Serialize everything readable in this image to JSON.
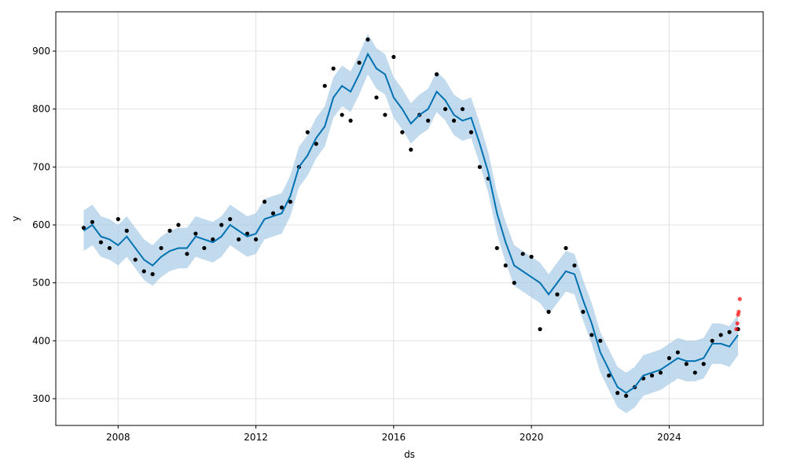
{
  "chart_data": {
    "type": "line",
    "xlabel": "ds",
    "ylabel": "y",
    "xlim": [
      2006.19,
      2026.73
    ],
    "ylim": [
      253.8,
      967.9
    ],
    "xticks": [
      2008,
      2012,
      2016,
      2020,
      2024
    ],
    "yticks": [
      300,
      400,
      500,
      600,
      700,
      800,
      900
    ],
    "grid": true,
    "x": [
      2007.0,
      2007.25,
      2007.5,
      2007.75,
      2008.0,
      2008.25,
      2008.5,
      2008.75,
      2009.0,
      2009.25,
      2009.5,
      2009.75,
      2010.0,
      2010.25,
      2010.5,
      2010.75,
      2011.0,
      2011.25,
      2011.5,
      2011.75,
      2012.0,
      2012.25,
      2012.5,
      2012.75,
      2013.0,
      2013.25,
      2013.5,
      2013.75,
      2014.0,
      2014.25,
      2014.5,
      2014.75,
      2015.0,
      2015.25,
      2015.5,
      2015.75,
      2016.0,
      2016.25,
      2016.5,
      2016.75,
      2017.0,
      2017.25,
      2017.5,
      2017.75,
      2018.0,
      2018.25,
      2018.5,
      2018.75,
      2019.0,
      2019.25,
      2019.5,
      2019.75,
      2020.0,
      2020.25,
      2020.5,
      2020.75,
      2021.0,
      2021.25,
      2021.5,
      2021.75,
      2022.0,
      2022.25,
      2022.5,
      2022.75,
      2023.0,
      2023.25,
      2023.5,
      2023.75,
      2024.0,
      2024.25,
      2024.5,
      2024.75,
      2025.0,
      2025.25,
      2025.5,
      2025.75,
      2026.0
    ],
    "forecast": {
      "color": "#0072b2",
      "values": [
        590,
        600,
        580,
        575,
        565,
        580,
        560,
        540,
        530,
        545,
        555,
        560,
        560,
        580,
        575,
        570,
        580,
        600,
        590,
        580,
        585,
        610,
        615,
        620,
        650,
        700,
        720,
        750,
        770,
        820,
        840,
        830,
        860,
        895,
        870,
        860,
        820,
        800,
        775,
        790,
        800,
        830,
        815,
        790,
        780,
        785,
        740,
        690,
        620,
        570,
        530,
        520,
        510,
        500,
        480,
        500,
        520,
        515,
        470,
        430,
        380,
        350,
        320,
        310,
        320,
        340,
        345,
        350,
        360,
        370,
        365,
        365,
        370,
        395,
        395,
        390,
        410
      ]
    },
    "band": {
      "color": "#a6cbe6",
      "lower": [
        555,
        565,
        545,
        540,
        530,
        545,
        525,
        505,
        495,
        510,
        520,
        525,
        525,
        545,
        540,
        535,
        545,
        565,
        555,
        545,
        550,
        575,
        580,
        585,
        615,
        665,
        685,
        715,
        735,
        785,
        805,
        795,
        825,
        860,
        835,
        825,
        785,
        765,
        740,
        755,
        765,
        795,
        780,
        755,
        745,
        750,
        705,
        655,
        585,
        535,
        495,
        485,
        475,
        465,
        445,
        465,
        485,
        480,
        435,
        395,
        345,
        315,
        285,
        275,
        285,
        305,
        310,
        315,
        325,
        335,
        330,
        330,
        335,
        360,
        360,
        355,
        375
      ],
      "upper": [
        625,
        635,
        615,
        610,
        600,
        615,
        595,
        575,
        565,
        580,
        590,
        595,
        595,
        615,
        610,
        605,
        615,
        635,
        625,
        615,
        620,
        645,
        650,
        655,
        685,
        735,
        755,
        785,
        805,
        855,
        875,
        865,
        895,
        930,
        905,
        895,
        855,
        835,
        810,
        825,
        835,
        865,
        850,
        825,
        815,
        820,
        775,
        725,
        655,
        605,
        565,
        555,
        545,
        535,
        515,
        535,
        555,
        550,
        505,
        465,
        415,
        385,
        355,
        345,
        355,
        375,
        380,
        385,
        395,
        405,
        400,
        400,
        405,
        430,
        430,
        425,
        445
      ]
    },
    "observed": {
      "color": "#000000",
      "values": [
        595,
        605,
        570,
        560,
        610,
        590,
        540,
        520,
        515,
        560,
        590,
        600,
        550,
        585,
        560,
        575,
        600,
        610,
        575,
        585,
        575,
        640,
        620,
        630,
        640,
        700,
        760,
        740,
        840,
        870,
        790,
        780,
        880,
        920,
        820,
        790,
        890,
        760,
        730,
        790,
        780,
        860,
        800,
        780,
        800,
        760,
        700,
        680,
        560,
        530,
        500,
        550,
        545,
        420,
        450,
        480,
        560,
        530,
        450,
        410,
        400,
        340,
        310,
        305,
        320,
        335,
        340,
        345,
        370,
        380,
        360,
        345,
        360,
        400,
        410,
        415,
        420
      ]
    },
    "recent": {
      "color": "#ff0000",
      "x": [
        2025.95,
        2025.98,
        2026.0,
        2026.02,
        2026.05
      ],
      "values": [
        420,
        430,
        445,
        450,
        472
      ]
    }
  }
}
